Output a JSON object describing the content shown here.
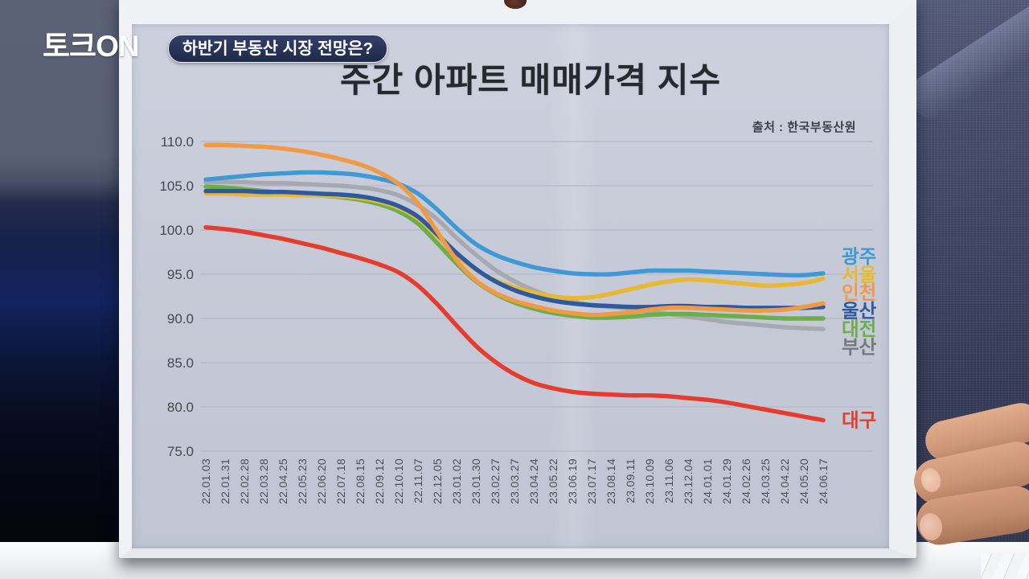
{
  "broadcast": {
    "logo": "토크ON",
    "headline": "하반기 부동산 시장 전망은?",
    "palette": {
      "logo_color": "#ffffff",
      "headline_bg": "#243055",
      "paper": "#c7cbd8",
      "studio_dark": "#0a1130",
      "denim": "#3c4260",
      "desk": "#f2f3f5"
    }
  },
  "chart_data": {
    "type": "line",
    "title": "주간 아파트 매매가격 지수",
    "source": "출처 : 한국부동산원",
    "xlabel": "",
    "ylabel": "",
    "ylim": [
      75,
      110
    ],
    "y_ticks": [
      110,
      105,
      100,
      95,
      90,
      85,
      80,
      75
    ],
    "grid": "horizontal",
    "legend_position": "line-end-labels-right",
    "x_labels": [
      "22.01.03",
      "22.01.31",
      "22.02.28",
      "22.03.28",
      "22.04.25",
      "22.05.23",
      "22.06.20",
      "22.07.18",
      "22.08.15",
      "22.09.12",
      "22.10.10",
      "22.11.07",
      "22.12.05",
      "23.01.02",
      "23.01.30",
      "23.02.27",
      "23.03.27",
      "23.04.24",
      "23.05.22",
      "23.06.19",
      "23.07.17",
      "23.08.14",
      "23.09.11",
      "23.10.09",
      "23.11.06",
      "23.12.04",
      "24.01.01",
      "24.01.29",
      "24.02.26",
      "24.03.25",
      "24.04.22",
      "24.05.20",
      "24.06.17"
    ],
    "series": [
      {
        "name": "광주",
        "color": "#3f99d5",
        "values": [
          105.7,
          105.9,
          106.1,
          106.3,
          106.4,
          106.5,
          106.5,
          106.4,
          106.2,
          105.8,
          105.2,
          104.1,
          102.3,
          100.2,
          98.4,
          97.2,
          96.4,
          95.8,
          95.4,
          95.1,
          95.0,
          95.0,
          95.2,
          95.4,
          95.4,
          95.4,
          95.3,
          95.2,
          95.1,
          95.0,
          94.9,
          94.9,
          95.1
        ]
      },
      {
        "name": "서울",
        "color": "#e9b831",
        "values": [
          104.1,
          104.1,
          104.0,
          104.0,
          104.0,
          103.9,
          103.9,
          103.8,
          103.6,
          103.2,
          102.5,
          101.3,
          99.3,
          97.2,
          95.5,
          94.3,
          93.5,
          92.9,
          92.5,
          92.3,
          92.4,
          92.8,
          93.3,
          93.8,
          94.2,
          94.4,
          94.3,
          94.1,
          93.9,
          93.7,
          93.8,
          94.0,
          94.5
        ]
      },
      {
        "name": "인천",
        "color": "#f19a43",
        "values": [
          109.6,
          109.6,
          109.5,
          109.4,
          109.2,
          108.9,
          108.5,
          108.0,
          107.4,
          106.5,
          105.2,
          103.0,
          99.8,
          96.6,
          94.3,
          92.9,
          92.0,
          91.4,
          90.9,
          90.6,
          90.4,
          90.5,
          90.7,
          91.0,
          91.2,
          91.2,
          91.1,
          91.0,
          90.9,
          90.9,
          91.0,
          91.3,
          91.7
        ]
      },
      {
        "name": "울산",
        "color": "#2d59a0",
        "values": [
          104.4,
          104.4,
          104.4,
          104.3,
          104.3,
          104.2,
          104.1,
          104.0,
          103.8,
          103.4,
          102.7,
          101.5,
          99.5,
          97.4,
          95.6,
          94.2,
          93.2,
          92.5,
          92.0,
          91.7,
          91.5,
          91.4,
          91.3,
          91.3,
          91.4,
          91.4,
          91.3,
          91.3,
          91.2,
          91.2,
          91.2,
          91.2,
          91.3
        ]
      },
      {
        "name": "대전",
        "color": "#6cae49",
        "values": [
          104.9,
          104.8,
          104.6,
          104.4,
          104.2,
          104.1,
          103.9,
          103.7,
          103.4,
          102.9,
          102.1,
          100.7,
          98.5,
          96.2,
          94.2,
          92.8,
          91.8,
          91.1,
          90.6,
          90.3,
          90.1,
          90.1,
          90.2,
          90.4,
          90.5,
          90.5,
          90.4,
          90.3,
          90.2,
          90.1,
          90.0,
          90.0,
          90.0
        ]
      },
      {
        "name": "부산",
        "color": "#a6a9b0",
        "label_color": "#75787f",
        "values": [
          105.4,
          105.4,
          105.4,
          105.3,
          105.3,
          105.2,
          105.1,
          105.0,
          104.8,
          104.5,
          103.9,
          102.8,
          101.2,
          99.1,
          97.2,
          95.5,
          94.2,
          93.2,
          92.4,
          91.9,
          91.5,
          91.3,
          91.1,
          90.8,
          90.5,
          90.2,
          89.9,
          89.6,
          89.4,
          89.2,
          89.0,
          88.9,
          88.8
        ]
      },
      {
        "name": "대구",
        "color": "#e63c2e",
        "values": [
          100.3,
          100.1,
          99.8,
          99.4,
          99.0,
          98.5,
          98.0,
          97.4,
          96.8,
          96.1,
          95.2,
          93.7,
          91.6,
          89.2,
          86.9,
          85.1,
          83.7,
          82.7,
          82.1,
          81.7,
          81.5,
          81.4,
          81.3,
          81.3,
          81.2,
          81.0,
          80.8,
          80.5,
          80.1,
          79.7,
          79.3,
          78.9,
          78.5
        ]
      }
    ]
  }
}
